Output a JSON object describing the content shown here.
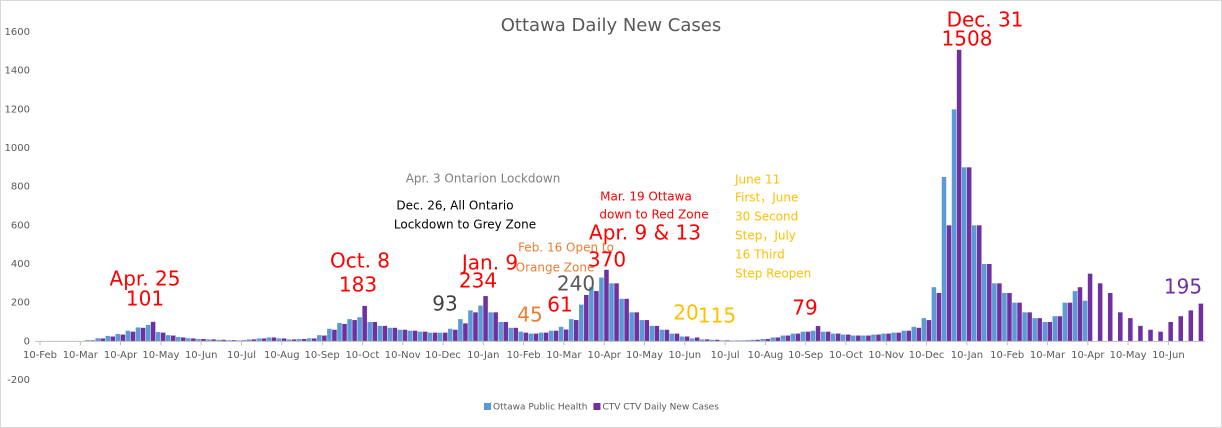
{
  "chart_data": {
    "type": "bar",
    "title": "Ottawa Daily New Cases",
    "categories": [
      "10-Feb",
      null,
      null,
      null,
      "10-Mar",
      null,
      null,
      null,
      "10-Apr",
      null,
      null,
      null,
      "10-May",
      null,
      null,
      null,
      "10-Jun",
      null,
      null,
      null,
      "10-Jul",
      null,
      null,
      null,
      "10-Aug",
      null,
      null,
      null,
      "10-Sep",
      null,
      null,
      null,
      "10-Oct",
      null,
      null,
      null,
      "10-Nov",
      null,
      null,
      null,
      "10-Dec",
      null,
      null,
      null,
      "10-Jan",
      null,
      null,
      null,
      "10-Feb",
      null,
      null,
      null,
      "10-Mar",
      null,
      null,
      null,
      "10-Apr",
      null,
      null,
      null,
      "10-May",
      null,
      null,
      null,
      "10-Jun",
      null,
      null,
      null,
      "10-Jul",
      null,
      null,
      null,
      "10-Aug",
      null,
      null,
      null,
      "10-Sep",
      null,
      null,
      null,
      "10-Oct",
      null,
      null,
      null,
      "10-Nov",
      null,
      null,
      null,
      "10-Dec",
      null,
      null,
      null,
      "10-Jan",
      null,
      null,
      null,
      "10-Feb",
      null,
      null,
      null,
      "10-Mar",
      null,
      null,
      null,
      "10-Apr",
      null,
      null,
      null,
      "10-May",
      null,
      null,
      null,
      "10-Jun",
      null,
      null,
      null
    ],
    "series": [
      {
        "name": "Ottawa Public Health",
        "color": "#5b9bd5",
        "values": [
          0,
          0,
          0,
          0,
          1,
          6,
          16,
          28,
          38,
          55,
          72,
          85,
          48,
          32,
          22,
          16,
          12,
          10,
          8,
          6,
          5,
          10,
          15,
          20,
          15,
          10,
          12,
          16,
          32,
          65,
          95,
          115,
          125,
          100,
          80,
          70,
          60,
          55,
          50,
          45,
          45,
          65,
          115,
          160,
          185,
          150,
          100,
          70,
          50,
          40,
          45,
          55,
          75,
          115,
          190,
          280,
          330,
          300,
          220,
          150,
          110,
          80,
          60,
          40,
          25,
          15,
          10,
          8,
          5,
          4,
          5,
          8,
          12,
          20,
          30,
          40,
          50,
          55,
          50,
          40,
          35,
          30,
          30,
          35,
          40,
          45,
          55,
          75,
          120,
          280,
          850,
          1200,
          900,
          600,
          400,
          300,
          250,
          200,
          150,
          120,
          100,
          130,
          200,
          260,
          210,
          null,
          null,
          null,
          null,
          null,
          null,
          null,
          null,
          null,
          null,
          null
        ]
      },
      {
        "name": "CTV CTV Daily New Cases",
        "color": "#7030a0",
        "values": [
          0,
          0,
          0,
          0,
          1,
          5,
          15,
          25,
          35,
          50,
          70,
          101,
          45,
          30,
          20,
          15,
          12,
          10,
          8,
          6,
          5,
          10,
          15,
          20,
          15,
          10,
          12,
          15,
          30,
          60,
          90,
          110,
          183,
          100,
          80,
          70,
          60,
          55,
          50,
          45,
          45,
          60,
          93,
          150,
          234,
          150,
          100,
          70,
          45,
          40,
          45,
          55,
          61,
          110,
          240,
          260,
          370,
          300,
          220,
          150,
          110,
          80,
          60,
          40,
          25,
          20,
          10,
          8,
          5,
          4,
          5,
          8,
          12,
          20,
          30,
          40,
          50,
          79,
          50,
          40,
          35,
          30,
          30,
          35,
          40,
          45,
          55,
          70,
          110,
          250,
          600,
          1508,
          900,
          600,
          400,
          300,
          250,
          200,
          150,
          120,
          100,
          130,
          200,
          280,
          350,
          300,
          250,
          150,
          120,
          80,
          60,
          50,
          100,
          130,
          160,
          195
        ]
      }
    ],
    "ylim": [
      -200,
      1600
    ],
    "yticks": [
      -200,
      0,
      200,
      400,
      600,
      800,
      1000,
      1200,
      1400,
      1600
    ],
    "grid": false,
    "legend": "bottom",
    "annotations": [
      {
        "text": "Apr. 25",
        "color": "#ff0000"
      },
      {
        "text": "101",
        "color": "#ff0000"
      },
      {
        "text": "Oct. 8",
        "color": "#ff0000"
      },
      {
        "text": "183",
        "color": "#ff0000"
      },
      {
        "text": "Apr. 3 Ontarion Lockdown",
        "color": "#7f7f7f"
      },
      {
        "text": "Dec. 26, All Ontario",
        "color": "#000000"
      },
      {
        "text": "Lockdown to Grey Zone",
        "color": "#000000"
      },
      {
        "text": "93",
        "color": "#404040"
      },
      {
        "text": "Jan. 9",
        "color": "#ff0000"
      },
      {
        "text": "234",
        "color": "#ff0000"
      },
      {
        "text": "Feb. 16 Open to",
        "color": "#ed7d31"
      },
      {
        "text": "Orange Zone",
        "color": "#ed7d31"
      },
      {
        "text": "45",
        "color": "#ed7d31"
      },
      {
        "text": "61",
        "color": "#ff0000"
      },
      {
        "text": "240",
        "color": "#595959"
      },
      {
        "text": "Mar. 19 Ottawa",
        "color": "#ff0000"
      },
      {
        "text": "down to Red Zone",
        "color": "#ff0000"
      },
      {
        "text": "Apr. 9 & 13",
        "color": "#ff0000"
      },
      {
        "text": "370",
        "color": "#ff0000"
      },
      {
        "text": "20",
        "color": "#ffc000"
      },
      {
        "text": "115",
        "color": "#ffc000"
      },
      {
        "text": "June 11",
        "color": "#ffc000"
      },
      {
        "text": "First，June",
        "color": "#ffc000"
      },
      {
        "text": "30 Second",
        "color": "#ffc000"
      },
      {
        "text": "Step，July",
        "color": "#ffc000"
      },
      {
        "text": "16 Third",
        "color": "#ffc000"
      },
      {
        "text": "Step Reopen",
        "color": "#ffc000"
      },
      {
        "text": "79",
        "color": "#ff0000"
      },
      {
        "text": "Dec. 31",
        "color": "#ff0000"
      },
      {
        "text": "1508",
        "color": "#ff0000"
      },
      {
        "text": "195",
        "color": "#7030a0"
      }
    ]
  }
}
